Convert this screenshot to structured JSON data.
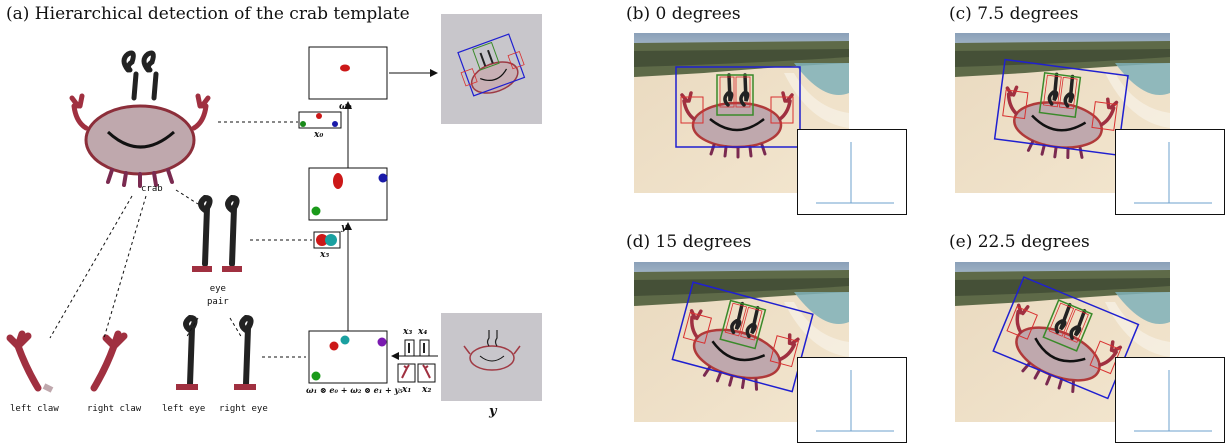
{
  "panel_a": {
    "title": "(a) Hierarchical detection of the crab template",
    "tree_labels": {
      "crab": "crab",
      "eye_pair": "eye\npair",
      "left_claw": "left claw",
      "right_claw": "right claw",
      "left_eye": "left eye",
      "right_eye": "right eye"
    },
    "math": {
      "omega0": "ω₀",
      "x0": "x₀",
      "y0": "y₀",
      "x5": "x₅",
      "x3": "x₃",
      "x4": "x₄",
      "x1": "x₁",
      "x2": "x₂",
      "formula": "ω₁ ⊗ e₀ + ω₂ ⊗ e₁ + y₅",
      "y": "y"
    }
  },
  "panels": [
    {
      "title": "(b) 0 degrees",
      "rotation_deg": 0
    },
    {
      "title": "(c) 7.5 degrees",
      "rotation_deg": 7.5
    },
    {
      "title": "(d) 15 degrees",
      "rotation_deg": 15
    },
    {
      "title": "(e) 22.5 degrees",
      "rotation_deg": 22.5
    }
  ],
  "colors": {
    "box_blue": "#1f1fd0",
    "box_red": "#d83030",
    "box_green": "#3a8a2a",
    "peak_line": "#6ea0cc",
    "crab_outline": "#b03a3a",
    "crab_body": "#bfa8ad"
  }
}
